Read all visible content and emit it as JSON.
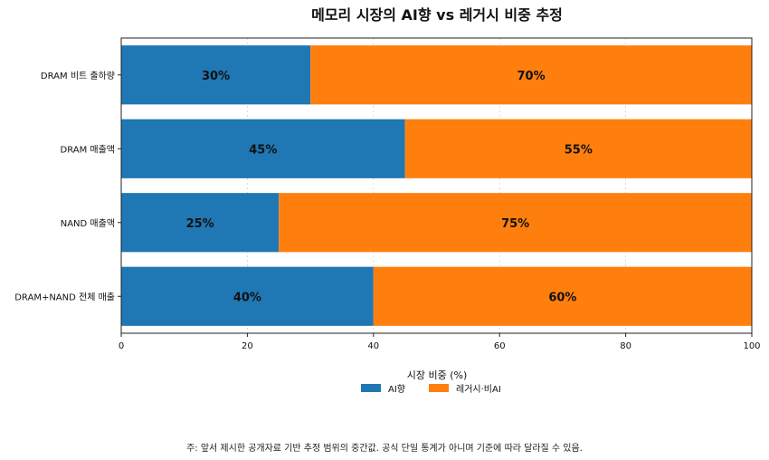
{
  "chart_data": {
    "type": "bar",
    "orientation": "horizontal",
    "stacked": true,
    "title": "메모리 시장의 AI향 vs 레거시 비중 추정",
    "xlabel": "시장 비중 (%)",
    "ylabel": "",
    "xlim": [
      0,
      100
    ],
    "xticks": [
      0,
      20,
      40,
      60,
      80,
      100
    ],
    "categories": [
      "DRAM 비트 출하량",
      "DRAM 매출액",
      "NAND 매출액",
      "DRAM+NAND 전체 매출"
    ],
    "series": [
      {
        "name": "AI향",
        "values": [
          30,
          45,
          25,
          40
        ],
        "labels": [
          "30%",
          "45%",
          "25%",
          "40%"
        ],
        "color": "#1f77b4"
      },
      {
        "name": "레거시·비AI",
        "values": [
          70,
          55,
          75,
          60
        ],
        "labels": [
          "70%",
          "55%",
          "75%",
          "60%"
        ],
        "color": "#ff7f0e"
      }
    ],
    "grid": true,
    "legend": "bottom"
  },
  "footnote": "주: 앞서 제시한 공개자료 기반 추정 범위의 중간값. 공식 단일 통계가 아니며 기준에 따라 달라질 수 있음."
}
